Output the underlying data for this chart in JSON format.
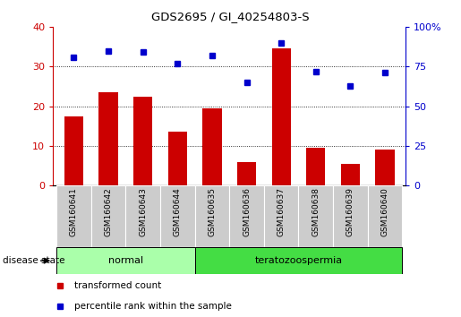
{
  "title": "GDS2695 / GI_40254803-S",
  "samples": [
    "GSM160641",
    "GSM160642",
    "GSM160643",
    "GSM160644",
    "GSM160635",
    "GSM160636",
    "GSM160637",
    "GSM160638",
    "GSM160639",
    "GSM160640"
  ],
  "transformed_count": [
    17.5,
    23.5,
    22.5,
    13.5,
    19.5,
    6.0,
    34.5,
    9.5,
    5.5,
    9.0
  ],
  "percentile_rank": [
    81,
    85,
    84,
    77,
    82,
    65,
    90,
    72,
    63,
    71
  ],
  "group_labels": [
    "normal",
    "teratozoospermia"
  ],
  "group_sizes": [
    4,
    6
  ],
  "bar_color": "#cc0000",
  "dot_color": "#0000cc",
  "normal_bg": "#aaffaa",
  "terato_bg": "#44dd44",
  "tick_bg": "#cccccc",
  "ylim_left": [
    0,
    40
  ],
  "ylim_right": [
    0,
    100
  ],
  "yticks_left": [
    0,
    10,
    20,
    30,
    40
  ],
  "yticks_right": [
    0,
    25,
    50,
    75,
    100
  ],
  "grid_values": [
    10,
    20,
    30
  ],
  "legend_items": [
    "transformed count",
    "percentile rank within the sample"
  ],
  "legend_colors": [
    "#cc0000",
    "#0000cc"
  ],
  "disease_state_label": "disease state"
}
